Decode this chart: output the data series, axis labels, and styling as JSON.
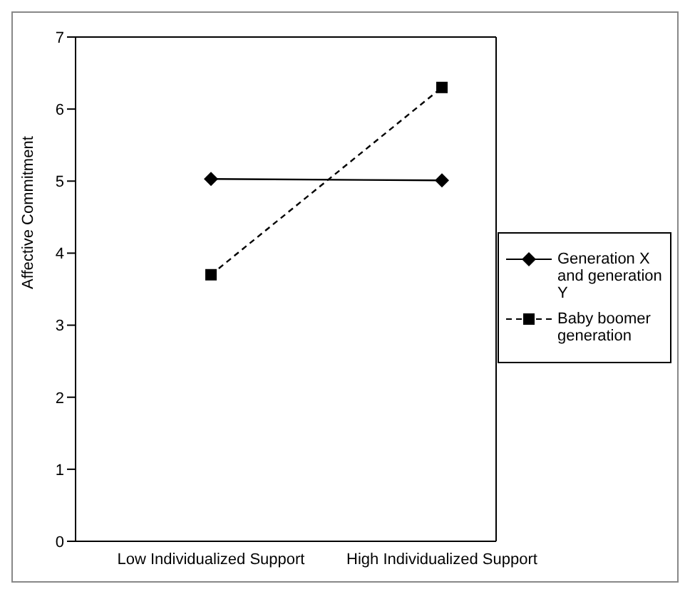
{
  "chart_data": {
    "type": "line",
    "categories": [
      "Low Individualized Support",
      "High Individualized Support"
    ],
    "ylabel": "Affective Commitment",
    "ylim": [
      0,
      7
    ],
    "yticks": [
      0,
      1,
      2,
      3,
      4,
      5,
      6,
      7
    ],
    "legend": "right",
    "series": [
      {
        "name": "Generation X and generation Y",
        "color": "#000000",
        "values": [
          5.03,
          5.01
        ],
        "marker": "diamond",
        "line_style": "solid"
      },
      {
        "name": "Baby boomer generation",
        "color": "#000000",
        "values": [
          3.7,
          6.3
        ],
        "marker": "square",
        "line_style": "dashed"
      }
    ]
  }
}
